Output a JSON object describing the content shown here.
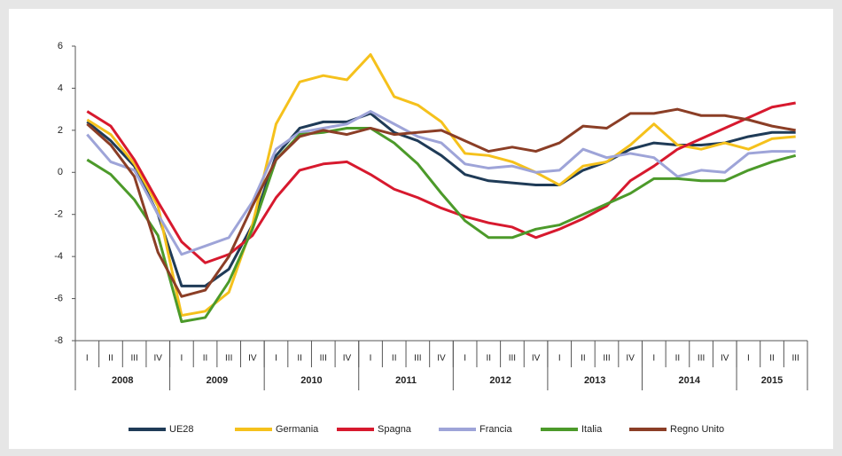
{
  "chart_data": {
    "type": "line",
    "categories": [
      "I",
      "II",
      "III",
      "IV",
      "I",
      "II",
      "III",
      "IV",
      "I",
      "II",
      "III",
      "IV",
      "I",
      "II",
      "III",
      "IV",
      "I",
      "II",
      "III",
      "IV",
      "I",
      "II",
      "III",
      "IV",
      "I",
      "II",
      "III",
      "IV",
      "I",
      "II",
      "III"
    ],
    "years": [
      "2008",
      "2009",
      "2010",
      "2011",
      "2012",
      "2013",
      "2014",
      "2015"
    ],
    "ylim": [
      -8,
      6
    ],
    "yticks": [
      -8,
      -6,
      -4,
      -2,
      0,
      2,
      4,
      6
    ],
    "legend": "bottom",
    "series": [
      {
        "name": "UE28",
        "color": "#1f3b57",
        "values": [
          2.4,
          1.5,
          0.3,
          -2,
          -5.4,
          -5.4,
          -4.6,
          -2.5,
          0.8,
          2.1,
          2.4,
          2.4,
          2.8,
          1.9,
          1.5,
          0.8,
          -0.1,
          -0.4,
          -0.5,
          -0.6,
          -0.6,
          0.1,
          0.5,
          1.1,
          1.4,
          1.3,
          1.3,
          1.4,
          1.7,
          1.9,
          1.9
        ]
      },
      {
        "name": "Germania",
        "color": "#f5c11c",
        "values": [
          2.5,
          1.8,
          0.4,
          -1.6,
          -6.8,
          -6.6,
          -5.7,
          -2.5,
          2.3,
          4.3,
          4.6,
          4.4,
          5.6,
          3.6,
          3.2,
          2.4,
          0.9,
          0.8,
          0.5,
          0.0,
          -0.6,
          0.3,
          0.5,
          1.3,
          2.3,
          1.3,
          1.1,
          1.4,
          1.1,
          1.6,
          1.7
        ]
      },
      {
        "name": "Spagna",
        "color": "#d7192e",
        "values": [
          2.9,
          2.2,
          0.6,
          -1.4,
          -3.3,
          -4.3,
          -3.9,
          -3.0,
          -1.2,
          0.1,
          0.4,
          0.5,
          -0.1,
          -0.8,
          -1.2,
          -1.7,
          -2.1,
          -2.4,
          -2.6,
          -3.1,
          -2.7,
          -2.2,
          -1.6,
          -0.4,
          0.3,
          1.1,
          1.6,
          2.1,
          2.6,
          3.1,
          3.3
        ]
      },
      {
        "name": "Francia",
        "color": "#9ea4d8",
        "values": [
          1.8,
          0.5,
          0.1,
          -2.0,
          -3.9,
          -3.5,
          -3.1,
          -1.4,
          1.1,
          1.9,
          2.1,
          2.3,
          2.9,
          2.3,
          1.7,
          1.4,
          0.4,
          0.2,
          0.3,
          0.0,
          0.1,
          1.1,
          0.7,
          0.9,
          0.7,
          -0.2,
          0.1,
          0.0,
          0.9,
          1.0,
          1.0
        ]
      },
      {
        "name": "Italia",
        "color": "#4c9a2a",
        "values": [
          0.6,
          -0.1,
          -1.3,
          -3.0,
          -7.1,
          -6.9,
          -5.2,
          -2.7,
          0.6,
          1.8,
          1.9,
          2.1,
          2.1,
          1.4,
          0.4,
          -1.0,
          -2.3,
          -3.1,
          -3.1,
          -2.7,
          -2.5,
          -2.0,
          -1.5,
          -1.0,
          -0.3,
          -0.3,
          -0.4,
          -0.4,
          0.1,
          0.5,
          0.8
        ]
      },
      {
        "name": "Regno Unito",
        "color": "#8b3e26",
        "values": [
          2.3,
          1.3,
          -0.2,
          -3.8,
          -5.9,
          -5.6,
          -4.0,
          -1.6,
          0.6,
          1.7,
          2.0,
          1.8,
          2.1,
          1.8,
          1.9,
          2.0,
          1.5,
          1.0,
          1.2,
          1.0,
          1.4,
          2.2,
          2.1,
          2.8,
          2.8,
          3.0,
          2.7,
          2.7,
          2.5,
          2.2,
          2.0
        ]
      }
    ]
  }
}
